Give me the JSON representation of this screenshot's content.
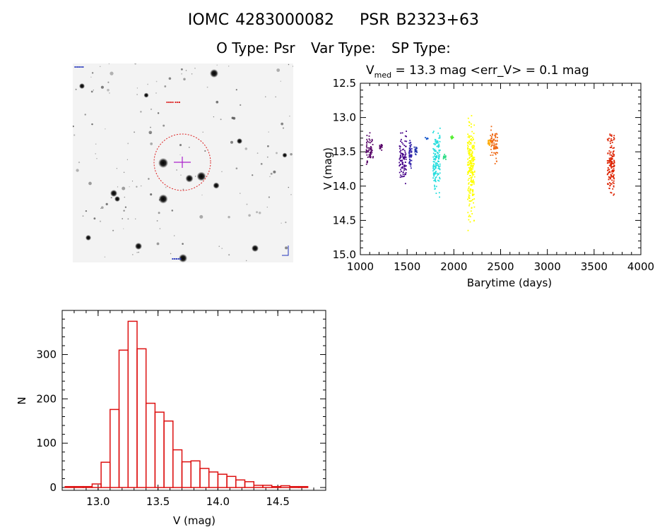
{
  "header": {
    "iomc_id": "IOMC 4283000082",
    "object_name": "PSR B2323+63",
    "o_type": "O Type: Psr",
    "var_type": "Var Type:",
    "sp_type": "SP Type:"
  },
  "image_panel": {
    "description_icon": "star-field-image",
    "crosshair_color": "#aa22cc",
    "circle_color": "#dd2222"
  },
  "chart_data": [
    {
      "type": "scatter",
      "title_prefix": "V",
      "title_subscript": "med",
      "title_rest": " = 13.3 mag <err_V> = 0.1 mag",
      "xlabel": "Barytime (days)",
      "ylabel": "V (mag)",
      "xlim": [
        1000,
        4000
      ],
      "ylim": [
        15.0,
        12.5
      ],
      "inverted_y": true,
      "xticks": [
        1000,
        1500,
        2000,
        2500,
        3000,
        3500,
        4000
      ],
      "yticks": [
        12.5,
        13.0,
        13.5,
        14.0,
        14.5,
        15.0
      ],
      "tick_labels_x": [
        "1000",
        "1500",
        "2000",
        "2500",
        "3000",
        "3500",
        "4000"
      ],
      "tick_labels_y": [
        "12.5",
        "13.0",
        "13.5",
        "14.0",
        "14.5",
        "15.0"
      ],
      "groups": [
        {
          "x": 1100,
          "y_min": 13.2,
          "y_max": 13.75,
          "color": "#550066"
        },
        {
          "x": 1220,
          "y_min": 13.35,
          "y_max": 13.5,
          "color": "#550066"
        },
        {
          "x": 1455,
          "y_min": 13.15,
          "y_max": 14.05,
          "color": "#440088"
        },
        {
          "x": 1535,
          "y_min": 13.3,
          "y_max": 13.8,
          "color": "#3322aa"
        },
        {
          "x": 1590,
          "y_min": 13.4,
          "y_max": 13.55,
          "color": "#2233aa"
        },
        {
          "x": 1710,
          "y_min": 13.28,
          "y_max": 13.33,
          "color": "#1155cc"
        },
        {
          "x": 1815,
          "y_min": 12.95,
          "y_max": 14.25,
          "color": "#22dddd"
        },
        {
          "x": 1900,
          "y_min": 13.5,
          "y_max": 13.65,
          "color": "#33dd88"
        },
        {
          "x": 1980,
          "y_min": 13.25,
          "y_max": 13.35,
          "color": "#55ee33"
        },
        {
          "x": 2185,
          "y_min": 12.75,
          "y_max": 14.75,
          "color": "#ffff00"
        },
        {
          "x": 2380,
          "y_min": 13.3,
          "y_max": 13.45,
          "color": "#ffaa00"
        },
        {
          "x": 2430,
          "y_min": 13.05,
          "y_max": 13.7,
          "color": "#ee6611"
        },
        {
          "x": 3680,
          "y_min": 13.05,
          "y_max": 14.35,
          "color": "#dd2200"
        }
      ]
    },
    {
      "type": "bar",
      "style": "histogram",
      "xlabel": "V (mag)",
      "ylabel": "N",
      "xlim": [
        12.7,
        14.9
      ],
      "ylim": [
        0,
        390
      ],
      "xticks": [
        13.0,
        13.5,
        14.0,
        14.5
      ],
      "yticks": [
        0,
        100,
        200,
        300
      ],
      "tick_labels_x": [
        "13.0",
        "13.5",
        "14.0",
        "14.5"
      ],
      "tick_labels_y": [
        "0",
        "100",
        "200",
        "300"
      ],
      "bin_width": 0.075,
      "bin_starts": [
        12.725,
        12.8,
        12.875,
        12.95,
        13.025,
        13.1,
        13.175,
        13.25,
        13.325,
        13.4,
        13.475,
        13.55,
        13.625,
        13.7,
        13.775,
        13.85,
        13.925,
        14.0,
        14.075,
        14.15,
        14.225,
        14.3,
        14.375,
        14.45,
        14.525,
        14.6,
        14.675
      ],
      "counts": [
        2,
        2,
        2,
        8,
        57,
        176,
        310,
        375,
        313,
        190,
        170,
        150,
        85,
        58,
        60,
        43,
        35,
        30,
        25,
        17,
        13,
        5,
        5,
        2,
        4,
        2,
        2
      ],
      "color": "#dd1111"
    }
  ]
}
